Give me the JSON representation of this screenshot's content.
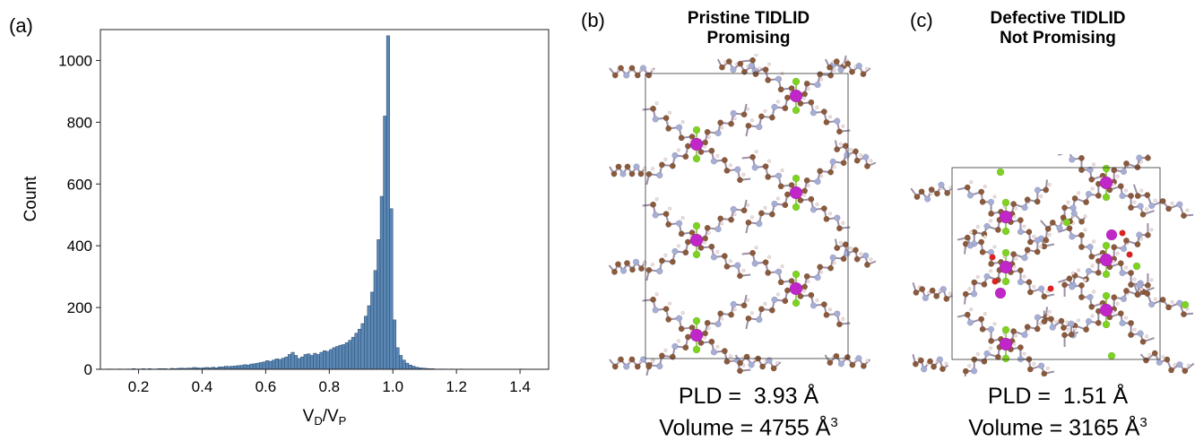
{
  "panels": {
    "a": {
      "label": "(a)"
    },
    "b": {
      "label": "(b)",
      "title_line1": "Pristine TIDLID",
      "title_line2": "Promising",
      "pld_label": "PLD =",
      "pld_value": "3.93 Å",
      "volume_label": "Volume =",
      "volume_value": "4755 Å",
      "volume_unit_exp": "3"
    },
    "c": {
      "label": "(c)",
      "title_line1": "Defective TIDLID",
      "title_line2": "Not Promising",
      "pld_label": "PLD =",
      "pld_value": "1.51 Å",
      "volume_label": "Volume =",
      "volume_value": "3165 Å",
      "volume_unit_exp": "3"
    }
  },
  "colors": {
    "bar_fill": "#5a87b5",
    "bar_edge": "#2b4a6b",
    "metal": "#c026c8",
    "halide": "#7ed321",
    "carbon": "#8b5a3c",
    "nitrogen": "#a6aed6",
    "hydrogen": "#f2dede",
    "oxygen": "#e02020",
    "cell": "#333333"
  },
  "chart_data": {
    "type": "bar",
    "title": "",
    "xlabel": "V",
    "xlabel_sub1": "D",
    "xlabel_sep": "/V",
    "xlabel_sub2": "P",
    "ylabel": "Count",
    "xlim": [
      0.08,
      1.49
    ],
    "ylim": [
      0,
      1100
    ],
    "xticks": [
      0.2,
      0.4,
      0.6,
      0.8,
      1.0,
      1.2,
      1.4
    ],
    "xtick_labels": [
      "0.2",
      "0.4",
      "0.6",
      "0.8",
      "1.0",
      "1.2",
      "1.4"
    ],
    "yticks": [
      0,
      200,
      400,
      600,
      800,
      1000
    ],
    "ytick_labels": [
      "0",
      "200",
      "400",
      "600",
      "800",
      "1000"
    ],
    "grid": false,
    "bin_start": 0.1,
    "bin_width": 0.01,
    "values": [
      1,
      1,
      0,
      1,
      1,
      0,
      1,
      1,
      2,
      1,
      1,
      2,
      1,
      2,
      1,
      1,
      2,
      2,
      2,
      1,
      3,
      2,
      3,
      4,
      3,
      4,
      4,
      6,
      5,
      4,
      5,
      6,
      5,
      7,
      5,
      8,
      8,
      10,
      9,
      10,
      11,
      12,
      13,
      15,
      14,
      17,
      18,
      20,
      22,
      24,
      28,
      26,
      30,
      34,
      32,
      36,
      40,
      48,
      55,
      45,
      35,
      40,
      48,
      50,
      45,
      52,
      48,
      55,
      60,
      58,
      64,
      70,
      74,
      78,
      80,
      86,
      94,
      104,
      117,
      130,
      148,
      172,
      206,
      250,
      320,
      420,
      560,
      820,
      1080,
      520,
      160,
      70,
      45,
      30,
      20,
      14,
      10,
      7,
      5,
      4,
      3,
      2,
      2,
      1,
      1,
      1,
      1,
      0,
      1,
      0,
      0,
      1,
      0,
      0,
      0,
      0,
      0,
      0,
      0,
      0,
      0,
      0,
      0,
      0,
      0,
      0,
      0,
      0,
      0,
      0,
      1,
      0
    ]
  }
}
